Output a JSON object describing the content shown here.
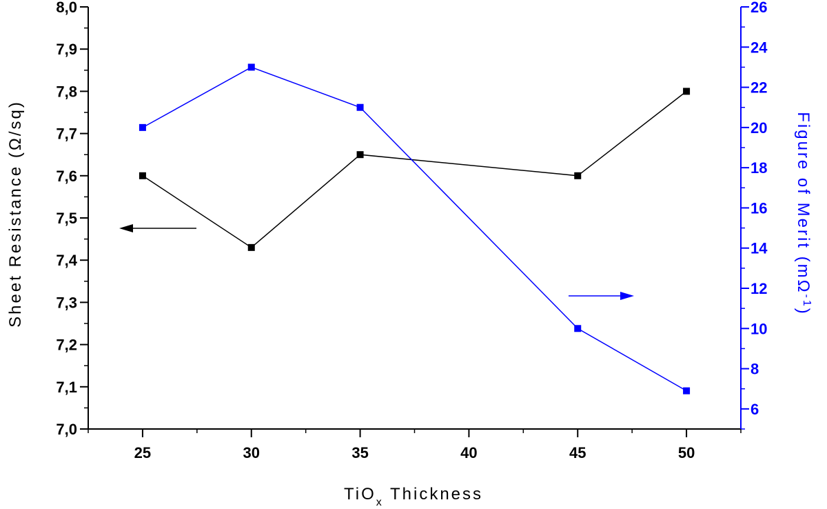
{
  "chart_data": {
    "type": "line",
    "xlabel": "TiO",
    "xlabel_sub": "x",
    "xlabel_tail": " Thickness",
    "ylabel": "Sheet Resistance (Ω/sq)",
    "y2label": "Figure of Merit (mΩ",
    "y2label_sup": "-1",
    "y2label_tail": ")",
    "xlim": [
      22.5,
      52.5
    ],
    "ylim": [
      7.0,
      8.0
    ],
    "y2lim": [
      5,
      26
    ],
    "x_ticks": [
      "25",
      "30",
      "35",
      "40",
      "45",
      "50"
    ],
    "y_ticks": [
      "7,0",
      "7,1",
      "7,2",
      "7,3",
      "7,4",
      "7,5",
      "7,6",
      "7,7",
      "7,8",
      "7,9",
      "8,0"
    ],
    "y2_ticks": [
      "6",
      "8",
      "10",
      "12",
      "14",
      "16",
      "18",
      "20",
      "22",
      "24",
      "26"
    ],
    "series": [
      {
        "axis": "left",
        "color": "#000000",
        "x": [
          25,
          30,
          35,
          45,
          50
        ],
        "values": [
          7.6,
          7.43,
          7.65,
          7.6,
          7.8
        ]
      },
      {
        "axis": "right",
        "color": "#0000ff",
        "x": [
          25,
          30,
          35,
          45,
          50
        ],
        "values": [
          20.0,
          23.0,
          21.0,
          10.0,
          6.9
        ]
      }
    ],
    "annotations": [
      {
        "type": "arrow",
        "direction": "left",
        "color": "#000000",
        "points_to": "left-axis"
      },
      {
        "type": "arrow",
        "direction": "right",
        "color": "#0000ff",
        "points_to": "right-axis"
      }
    ],
    "grid": false,
    "legend": "none"
  }
}
